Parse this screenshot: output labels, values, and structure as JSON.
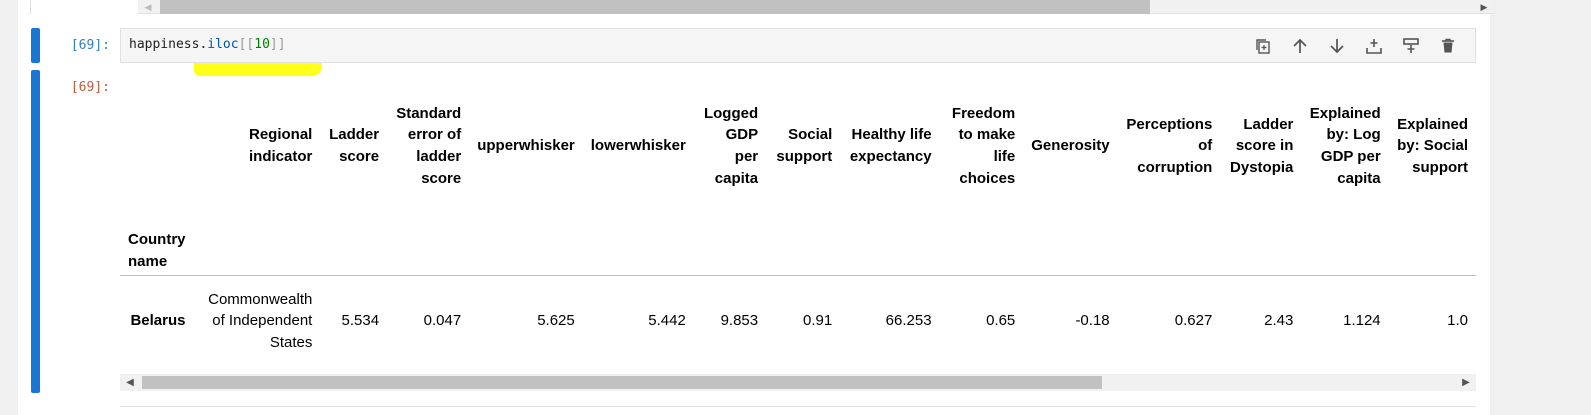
{
  "input_prompt": "[69]:",
  "output_prompt": "[69]:",
  "code": {
    "obj": "happiness",
    "dot": ".",
    "attr": "iloc",
    "open": "[[",
    "num": "10",
    "close": "]]"
  },
  "toolbar": {
    "duplicate": "copy-icon",
    "move_up": "arrow-up-icon",
    "move_down": "arrow-down-icon",
    "insert_above": "insert-above-icon",
    "insert_below": "insert-below-icon",
    "delete": "trash-icon"
  },
  "table": {
    "index_name": "Country name",
    "columns": [
      "Regional indicator",
      "Ladder score",
      "Standard error of ladder score",
      "upperwhisker",
      "lowerwhisker",
      "Logged GDP per capita",
      "Social support",
      "Healthy life expectancy",
      "Freedom to make life choices",
      "Generosity",
      "Perceptions of corruption",
      "Ladder score in Dystopia",
      "Explained by: Log GDP per capita",
      "Explained by: Social support"
    ],
    "rows": [
      {
        "index": "Belarus",
        "values": [
          "Commonwealth of Independent States",
          "5.534",
          "0.047",
          "5.625",
          "5.442",
          "9.853",
          "0.91",
          "66.253",
          "0.65",
          "-0.18",
          "0.627",
          "2.43",
          "1.124",
          "1.0"
        ]
      }
    ]
  },
  "colors": {
    "selection_bar": "#1976d2",
    "highlight": "#ffff00",
    "input_prompt": "#307fc1",
    "output_prompt": "#bf5b3d"
  }
}
